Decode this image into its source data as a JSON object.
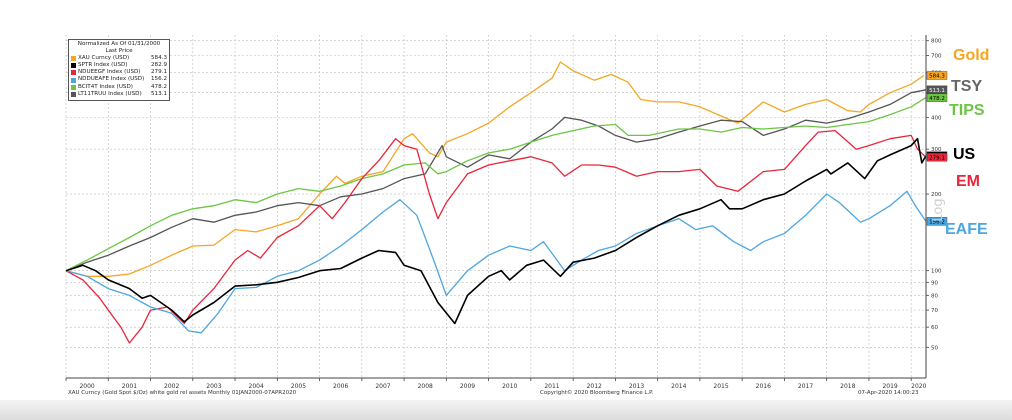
{
  "legend": {
    "title_line1": "Normalized As Of 01/31/2000",
    "title_line2": "Last Price",
    "items": [
      {
        "name": "XAU Curncy (USD)",
        "value": "584.3"
      },
      {
        "name": "SPTR Index (USD)",
        "value": "282.9"
      },
      {
        "name": "NDUEEGF Index (USD)",
        "value": "279.1"
      },
      {
        "name": "NDDUEAFE Index (USD)",
        "value": "156.2"
      },
      {
        "name": "BCIT4T Index (USD)",
        "value": "478.2"
      },
      {
        "name": "LT11TRUU Index (USD)",
        "value": "513.1"
      }
    ]
  },
  "annotations": {
    "gold": "Gold",
    "tsy": "TSY",
    "tips": "TIPS",
    "us": "US",
    "em": "EM",
    "eafe": "EAFE"
  },
  "watermark": "Log",
  "footer": {
    "left": "XAU Curncy (Gold Spot  $/Oz) white gold rel assets  Monthly 01JAN2000-07APR2020",
    "center": "Copyright© 2020 Bloomberg Finance L.P.",
    "right": "07-Apr-2020 14:00:23"
  },
  "chart_data": {
    "type": "line",
    "scale": "log",
    "ylim": [
      40,
      820
    ],
    "xlim": [
      2000.0,
      2020.35
    ],
    "y_ticks": [
      50,
      60,
      70,
      80,
      90,
      100,
      200,
      300,
      400,
      500,
      600,
      700,
      800
    ],
    "x_ticks": [
      "2000",
      "2001",
      "2002",
      "2003",
      "2004",
      "2005",
      "2006",
      "2007",
      "2008",
      "2009",
      "2010",
      "2011",
      "2012",
      "2013",
      "2014",
      "2015",
      "2016",
      "2017",
      "2018",
      "2019",
      "2020"
    ],
    "grid": true,
    "legend_position": "top-left",
    "series": [
      {
        "name": "XAU Curncy (USD)",
        "color": "#f5a623",
        "last_label": "584.3",
        "x": [
          2000.0,
          2000.5,
          2001.0,
          2001.5,
          2002.0,
          2002.5,
          2003.0,
          2003.5,
          2004.0,
          2004.5,
          2005.0,
          2005.5,
          2006.0,
          2006.4,
          2006.6,
          2007.0,
          2007.5,
          2008.0,
          2008.2,
          2008.6,
          2008.8,
          2009.0,
          2009.5,
          2010.0,
          2010.5,
          2011.0,
          2011.5,
          2011.7,
          2012.0,
          2012.5,
          2012.9,
          2013.3,
          2013.6,
          2014.0,
          2014.5,
          2015.0,
          2015.5,
          2015.9,
          2016.5,
          2017.0,
          2017.5,
          2018.0,
          2018.5,
          2018.8,
          2019.0,
          2019.5,
          2020.0,
          2020.3
        ],
        "y": [
          100,
          95,
          95,
          97,
          105,
          115,
          125,
          126,
          145,
          142,
          150,
          160,
          200,
          235,
          220,
          235,
          245,
          330,
          345,
          290,
          280,
          320,
          345,
          380,
          440,
          500,
          570,
          660,
          610,
          560,
          590,
          550,
          470,
          460,
          460,
          440,
          405,
          380,
          460,
          420,
          450,
          470,
          425,
          420,
          450,
          500,
          540,
          584.3
        ]
      },
      {
        "name": "SPTR Index (USD)",
        "color": "#000000",
        "last_label": "282.9",
        "x": [
          2000.0,
          2000.4,
          2000.7,
          2001.0,
          2001.5,
          2001.8,
          2002.0,
          2002.5,
          2002.8,
          2003.0,
          2003.5,
          2004.0,
          2004.5,
          2005.0,
          2005.5,
          2006.0,
          2006.5,
          2007.0,
          2007.4,
          2007.8,
          2008.0,
          2008.4,
          2008.8,
          2009.2,
          2009.5,
          2010.0,
          2010.3,
          2010.5,
          2010.9,
          2011.3,
          2011.7,
          2012.0,
          2012.5,
          2013.0,
          2013.5,
          2014.0,
          2014.5,
          2015.0,
          2015.5,
          2015.7,
          2016.0,
          2016.5,
          2017.0,
          2017.5,
          2018.0,
          2018.1,
          2018.5,
          2018.9,
          2019.2,
          2019.5,
          2020.0,
          2020.15,
          2020.25,
          2020.35
        ],
        "y": [
          100,
          105,
          100,
          92,
          85,
          78,
          80,
          70,
          63,
          67,
          75,
          87,
          88,
          90,
          94,
          100,
          102,
          112,
          120,
          118,
          105,
          100,
          75,
          62,
          80,
          95,
          100,
          92,
          105,
          110,
          95,
          108,
          112,
          120,
          135,
          150,
          165,
          175,
          190,
          175,
          175,
          190,
          200,
          225,
          250,
          240,
          265,
          230,
          270,
          285,
          310,
          330,
          265,
          282.9
        ]
      },
      {
        "name": "NDUEEGF Index (USD)",
        "color": "#e8253a",
        "last_label": "279.1",
        "x": [
          2000.0,
          2000.4,
          2000.8,
          2001.0,
          2001.3,
          2001.5,
          2001.8,
          2002.0,
          2002.4,
          2002.8,
          2003.0,
          2003.5,
          2004.0,
          2004.3,
          2004.6,
          2005.0,
          2005.5,
          2006.0,
          2006.3,
          2006.6,
          2007.0,
          2007.4,
          2007.8,
          2008.0,
          2008.3,
          2008.6,
          2008.8,
          2009.0,
          2009.5,
          2010.0,
          2010.5,
          2011.0,
          2011.5,
          2011.8,
          2012.2,
          2012.6,
          2013.0,
          2013.5,
          2014.0,
          2014.5,
          2015.0,
          2015.4,
          2015.9,
          2016.5,
          2017.0,
          2017.5,
          2017.8,
          2018.2,
          2018.7,
          2019.0,
          2019.5,
          2020.0,
          2020.15,
          2020.35
        ],
        "y": [
          100,
          92,
          78,
          70,
          60,
          52,
          60,
          70,
          72,
          62,
          70,
          85,
          110,
          120,
          112,
          135,
          150,
          180,
          160,
          185,
          230,
          270,
          330,
          310,
          300,
          200,
          160,
          185,
          240,
          260,
          270,
          280,
          265,
          235,
          260,
          260,
          255,
          235,
          245,
          245,
          250,
          215,
          205,
          245,
          250,
          310,
          350,
          355,
          300,
          310,
          330,
          340,
          300,
          279.1
        ]
      },
      {
        "name": "NDDUEAFE Index (USD)",
        "color": "#4da6e0",
        "last_label": "156.2",
        "x": [
          2000.0,
          2000.5,
          2001.0,
          2001.5,
          2002.0,
          2002.5,
          2002.9,
          2003.2,
          2003.6,
          2004.0,
          2004.5,
          2005.0,
          2005.5,
          2006.0,
          2006.5,
          2007.0,
          2007.5,
          2007.9,
          2008.3,
          2008.7,
          2009.0,
          2009.5,
          2010.0,
          2010.5,
          2011.0,
          2011.3,
          2011.8,
          2012.2,
          2012.6,
          2013.0,
          2013.5,
          2014.0,
          2014.5,
          2014.9,
          2015.3,
          2015.8,
          2016.2,
          2016.5,
          2017.0,
          2017.5,
          2018.0,
          2018.3,
          2018.8,
          2019.0,
          2019.5,
          2019.9,
          2020.1,
          2020.35
        ],
        "y": [
          100,
          95,
          85,
          80,
          72,
          68,
          58,
          57,
          68,
          85,
          86,
          95,
          100,
          110,
          125,
          145,
          170,
          190,
          165,
          110,
          80,
          100,
          115,
          125,
          120,
          130,
          100,
          110,
          120,
          125,
          140,
          150,
          160,
          145,
          150,
          130,
          120,
          130,
          140,
          165,
          200,
          185,
          155,
          160,
          180,
          205,
          180,
          156.2
        ]
      },
      {
        "name": "BCIT4T Index (USD)",
        "color": "#6cc644",
        "last_label": "478.2",
        "x": [
          2000.0,
          2000.5,
          2001.0,
          2001.5,
          2002.0,
          2002.5,
          2003.0,
          2003.5,
          2004.0,
          2004.5,
          2005.0,
          2005.5,
          2006.0,
          2006.5,
          2007.0,
          2007.5,
          2008.0,
          2008.5,
          2008.8,
          2009.0,
          2009.5,
          2010.0,
          2010.5,
          2011.0,
          2011.5,
          2012.0,
          2012.5,
          2013.0,
          2013.3,
          2013.8,
          2014.5,
          2015.0,
          2015.5,
          2016.0,
          2016.5,
          2017.0,
          2017.5,
          2018.0,
          2018.5,
          2019.0,
          2019.5,
          2020.0,
          2020.35
        ],
        "y": [
          100,
          110,
          122,
          135,
          150,
          165,
          175,
          180,
          190,
          185,
          200,
          210,
          205,
          215,
          230,
          240,
          260,
          265,
          240,
          245,
          270,
          290,
          300,
          320,
          340,
          355,
          370,
          375,
          340,
          340,
          360,
          360,
          350,
          365,
          360,
          365,
          370,
          365,
          375,
          385,
          410,
          440,
          478.2
        ]
      },
      {
        "name": "LT11TRUU Index (USD)",
        "color": "#555555",
        "last_label": "513.1",
        "x": [
          2000.0,
          2000.5,
          2001.0,
          2001.5,
          2002.0,
          2002.5,
          2003.0,
          2003.5,
          2004.0,
          2004.5,
          2005.0,
          2005.5,
          2006.0,
          2006.5,
          2007.0,
          2007.5,
          2008.0,
          2008.5,
          2008.9,
          2009.0,
          2009.5,
          2010.0,
          2010.5,
          2011.0,
          2011.5,
          2011.8,
          2012.2,
          2012.6,
          2013.0,
          2013.5,
          2014.0,
          2014.5,
          2015.0,
          2015.5,
          2016.0,
          2016.5,
          2017.0,
          2017.5,
          2018.0,
          2018.5,
          2019.0,
          2019.5,
          2020.0,
          2020.35
        ],
        "y": [
          100,
          108,
          115,
          125,
          135,
          148,
          160,
          155,
          165,
          170,
          180,
          185,
          180,
          195,
          200,
          210,
          230,
          240,
          310,
          280,
          255,
          285,
          275,
          320,
          360,
          400,
          390,
          370,
          340,
          320,
          330,
          350,
          370,
          390,
          385,
          340,
          360,
          390,
          380,
          395,
          420,
          450,
          500,
          513.1
        ]
      }
    ]
  }
}
